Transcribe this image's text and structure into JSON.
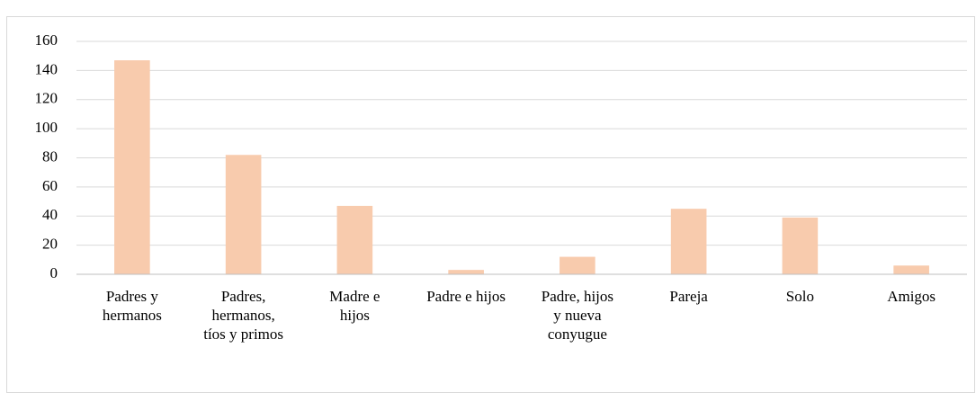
{
  "chart_data": {
    "type": "bar",
    "categories": [
      "Padres y hermanos",
      "Padres, hermanos, tíos y primos",
      "Madre e hijos",
      "Padre e hijos",
      "Padre, hijos y nueva conyugue",
      "Pareja",
      "Solo",
      "Amigos"
    ],
    "values": [
      147,
      82,
      47,
      3,
      12,
      45,
      39,
      6
    ],
    "color": "#f8cbad",
    "ylim": [
      0,
      160
    ],
    "yticks": [
      0,
      20,
      40,
      60,
      80,
      100,
      120,
      140,
      160
    ],
    "grid": true
  }
}
